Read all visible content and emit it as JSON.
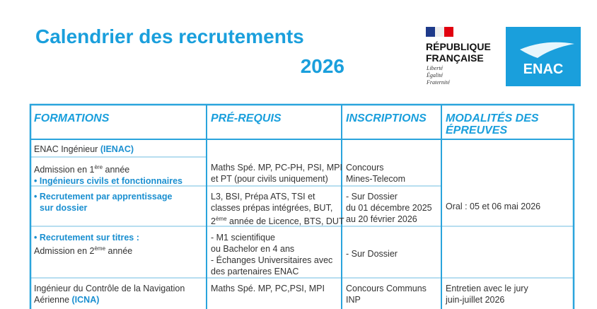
{
  "header": {
    "title": [
      "Calendrier des recrutements",
      "2026"
    ],
    "republique": [
      "RÉPUBLIQUE",
      "FRANÇAISE"
    ],
    "motto": [
      "Liberté",
      "Égalité",
      "Fraternité"
    ],
    "logo": "ENAC"
  },
  "table": {
    "headers": [
      "FORMATIONS",
      "PRÉ-REQUIS",
      "INSCRIPTIONS",
      "MODALITÉS DES ÉPREUVES"
    ],
    "cells": [
      {
        "lines": [
          [
            "ENAC Ingénieur ",
            {
              "text": "(IENAC)",
              "style": "accent"
            }
          ]
        ]
      },
      {
        "lines": [
          [
            "Admission en 1",
            {
              "text": "ère",
              "style": "sup"
            },
            " année"
          ],
          [
            {
              "text": "• Ingénieurs civils et fonctionnaires",
              "style": "accent"
            }
          ]
        ]
      },
      {
        "lines": [
          [
            "Maths Spé. MP, PC-PH, PSI, MPI"
          ],
          [
            "et PT (pour civils uniquement)"
          ]
        ]
      },
      {
        "lines": [
          [
            "Concours"
          ],
          [
            "Mines-Telecom"
          ]
        ]
      },
      {
        "lines": [
          [
            {
              "text": "• Recrutement par apprentissage",
              "style": "accent"
            }
          ],
          [
            {
              "text": "sur dossier",
              "style": "accent indent"
            }
          ]
        ]
      },
      {
        "lines": [
          [
            "L3, BSI, Prépa ATS, TSI et"
          ],
          [
            "classes prépas intégrées, BUT,"
          ],
          [
            "2",
            {
              "text": "ème",
              "style": "sup"
            },
            " année de Licence, BTS, DUT"
          ]
        ]
      },
      {
        "lines": [
          [
            "- Sur Dossier"
          ],
          [
            "du 01 décembre 2025"
          ],
          [
            "au 20 février 2026"
          ]
        ]
      },
      {
        "lines": [
          [
            "Oral : 05 et 06 mai 2026"
          ]
        ]
      },
      {
        "lines": [
          [
            {
              "text": "• Recrutement sur titres :",
              "style": "accent"
            }
          ],
          [
            "Admission en 2",
            {
              "text": "ème",
              "style": "sup"
            },
            " année"
          ]
        ]
      },
      {
        "lines": [
          [
            "- M1 scientifique"
          ],
          [
            "ou Bachelor en 4 ans"
          ],
          [
            "- Échanges  Universitaires avec"
          ],
          [
            "des partenaires ENAC"
          ]
        ]
      },
      {
        "lines": [
          [
            "- Sur Dossier"
          ]
        ]
      },
      {
        "lines": [
          [
            "Ingénieur du Contrôle de la Navigation"
          ],
          [
            "Aérienne ",
            {
              "text": "(ICNA)",
              "style": "accent"
            }
          ]
        ]
      },
      {
        "lines": [
          [
            "Maths Spé. MP, PC,PSI, MPI"
          ]
        ]
      },
      {
        "lines": [
          [
            "Concours Communs"
          ],
          [
            "INP"
          ]
        ]
      },
      {
        "lines": [
          [
            "Entretien avec le jury"
          ],
          [
            "juin-juillet 2026"
          ]
        ]
      }
    ]
  }
}
